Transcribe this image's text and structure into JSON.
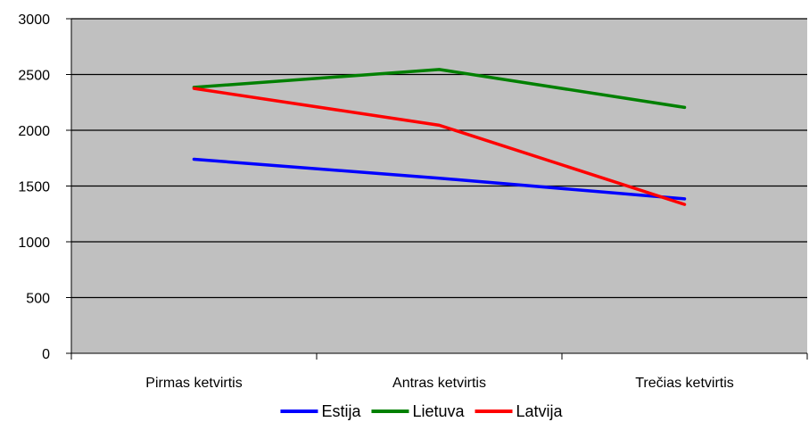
{
  "chart_data": {
    "type": "line",
    "title": "",
    "xlabel": "",
    "ylabel": "",
    "categories": [
      "Pirmas ketvirtis",
      "Antras ketvirtis",
      "Trečias ketvirtis"
    ],
    "ylim": [
      0,
      3000
    ],
    "yticks": [
      0,
      500,
      1000,
      1500,
      2000,
      2500,
      3000
    ],
    "grid": true,
    "legend_position": "bottom",
    "plot_background": "#c0c0c0",
    "series": [
      {
        "name": "Estija",
        "color": "#0000ff",
        "values": [
          1740,
          1570,
          1385
        ]
      },
      {
        "name": "Lietuva",
        "color": "#008000",
        "values": [
          2385,
          2545,
          2205
        ]
      },
      {
        "name": "Latvija",
        "color": "#ff0000",
        "values": [
          2375,
          2045,
          1335
        ]
      }
    ]
  }
}
